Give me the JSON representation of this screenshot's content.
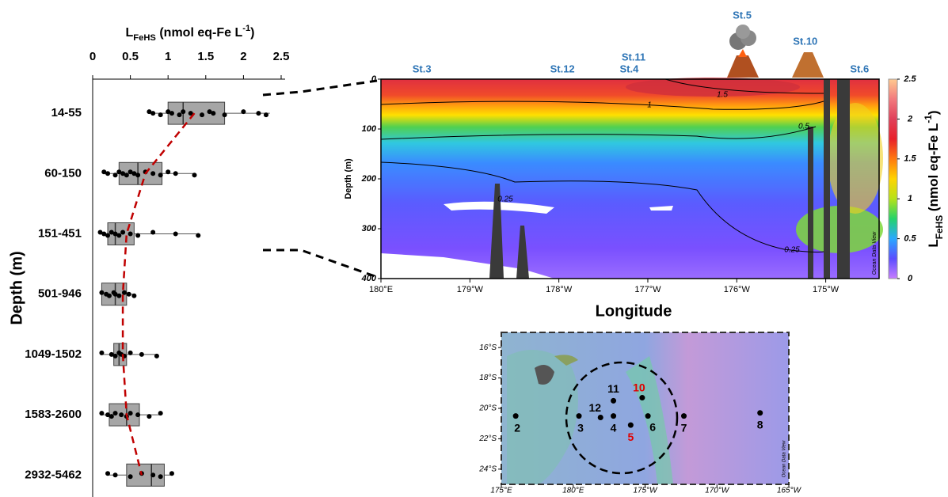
{
  "chart_data": [
    {
      "type": "boxplot",
      "x_label": [
        {
          "text": "L"
        },
        {
          "text": "FeHS",
          "style": "sub"
        },
        {
          "text": " (nmol eq-Fe L"
        },
        {
          "text": "-1",
          "style": "sup"
        },
        {
          "text": ")"
        }
      ],
      "y_label": "Depth (m)",
      "categories": [
        "14-55",
        "60-150",
        "151-451",
        "501-946",
        "1049-1502",
        "1583-2600",
        "2932-5462"
      ],
      "boxes": [
        {
          "min": 0.75,
          "q1": 1.0,
          "median": 1.2,
          "q3": 1.75,
          "max": 2.35
        },
        {
          "min": 0.15,
          "q1": 0.35,
          "median": 0.6,
          "q3": 0.92,
          "max": 1.35
        },
        {
          "min": 0.1,
          "q1": 0.2,
          "median": 0.3,
          "q3": 0.55,
          "max": 1.4
        },
        {
          "min": 0.12,
          "q1": 0.12,
          "median": 0.3,
          "q3": 0.45,
          "max": 0.55
        },
        {
          "min": 0.12,
          "q1": 0.28,
          "median": 0.35,
          "q3": 0.45,
          "max": 0.85
        },
        {
          "min": 0.12,
          "q1": 0.22,
          "median": 0.45,
          "q3": 0.62,
          "max": 0.9
        },
        {
          "min": 0.2,
          "q1": 0.45,
          "median": 0.78,
          "q3": 0.95,
          "max": 1.05
        }
      ],
      "points": [
        [
          0.75,
          0.8,
          0.9,
          1.0,
          1.05,
          1.15,
          1.2,
          1.3,
          1.45,
          1.55,
          1.6,
          1.75,
          2.0,
          2.2,
          2.3
        ],
        [
          0.15,
          0.2,
          0.3,
          0.35,
          0.4,
          0.45,
          0.5,
          0.55,
          0.6,
          0.7,
          0.8,
          0.9,
          1.0,
          1.1,
          1.35
        ],
        [
          0.1,
          0.15,
          0.2,
          0.25,
          0.3,
          0.35,
          0.4,
          0.5,
          0.6,
          0.8,
          1.1,
          1.4
        ],
        [
          0.12,
          0.18,
          0.22,
          0.28,
          0.3,
          0.35,
          0.42,
          0.48,
          0.55
        ],
        [
          0.12,
          0.25,
          0.3,
          0.35,
          0.38,
          0.42,
          0.5,
          0.65,
          0.85
        ],
        [
          0.12,
          0.2,
          0.25,
          0.3,
          0.38,
          0.45,
          0.5,
          0.6,
          0.75,
          0.9
        ],
        [
          0.2,
          0.3,
          0.5,
          0.65,
          0.8,
          0.9,
          1.05
        ]
      ],
      "means": [
        1.35,
        0.7,
        0.45,
        0.4,
        0.4,
        0.45,
        0.65
      ],
      "xlim": [
        0,
        2.5
      ],
      "xticks": [
        0,
        0.5,
        1,
        1.5,
        2,
        2.5
      ],
      "box_color": "#a6a6a6",
      "point_color": "#000000",
      "trend_color": "#c00000"
    },
    {
      "type": "section",
      "x_label": "Longitude",
      "y_label": "Depth (m)",
      "xlim": [
        180,
        185.6
      ],
      "ylim": [
        0,
        400
      ],
      "xticks": [
        {
          "value": 180,
          "label": "180°E"
        },
        {
          "value": 181,
          "label": "179°W"
        },
        {
          "value": 182,
          "label": "178°W"
        },
        {
          "value": 183,
          "label": "177°W"
        },
        {
          "value": 184,
          "label": "176°W"
        },
        {
          "value": 185,
          "label": "175°W"
        }
      ],
      "yticks": [
        0,
        100,
        200,
        300,
        400
      ],
      "stations": [
        {
          "name": "St.3",
          "x": 180.46
        },
        {
          "name": "St.12",
          "x": 182.04
        },
        {
          "name": "St.4",
          "x": 182.79
        },
        {
          "name": "St.11",
          "x": 182.84
        },
        {
          "name": "St.5",
          "x": 184.06
        },
        {
          "name": "St.10",
          "x": 184.77
        },
        {
          "name": "St.6",
          "x": 185.38
        }
      ],
      "station_color": "#2e75b6",
      "contour_labels": [
        "1.5",
        "1",
        "0.5",
        "0.25",
        "0.25"
      ],
      "watermark": "Ocean Data View",
      "colorbar_label": [
        {
          "text": "L"
        },
        {
          "text": "FeHS",
          "style": "sub"
        },
        {
          "text": " (nmol eq-Fe L"
        },
        {
          "text": "-1",
          "style": "sup"
        },
        {
          "text": ")"
        }
      ],
      "zlim": [
        0,
        2.5
      ],
      "zticks": [
        0,
        0.5,
        1,
        1.5,
        2,
        2.5
      ],
      "colorscale": [
        "#c77dff",
        "#5a4dff",
        "#2aa8ff",
        "#25d36b",
        "#b6e21a",
        "#ffd400",
        "#ff7a10",
        "#e8202a",
        "#e0405a",
        "#f27a7e",
        "#ffc98f"
      ]
    },
    {
      "type": "map",
      "xlim": [
        175,
        195
      ],
      "ylim": [
        -25,
        -15
      ],
      "xticks": [
        {
          "value": 175,
          "label": "175°E"
        },
        {
          "value": 180,
          "label": "180°E"
        },
        {
          "value": 185,
          "label": "175°W"
        },
        {
          "value": 190,
          "label": "170°W"
        },
        {
          "value": 195,
          "label": "165°W"
        }
      ],
      "yticks": [
        {
          "value": -16,
          "label": "16°S"
        },
        {
          "value": -18,
          "label": "18°S"
        },
        {
          "value": -20,
          "label": "20°S"
        },
        {
          "value": -22,
          "label": "22°S"
        },
        {
          "value": -24,
          "label": "24°S"
        }
      ],
      "stations": [
        {
          "label": "2",
          "x": 176.0,
          "y": -20.5,
          "color": "#000000"
        },
        {
          "label": "3",
          "x": 180.4,
          "y": -20.5,
          "color": "#000000"
        },
        {
          "label": "12",
          "x": 181.9,
          "y": -20.6,
          "color": "#000000"
        },
        {
          "label": "4",
          "x": 182.8,
          "y": -20.5,
          "color": "#000000"
        },
        {
          "label": "11",
          "x": 182.8,
          "y": -19.5,
          "color": "#000000"
        },
        {
          "label": "10",
          "x": 184.8,
          "y": -19.3,
          "color": "#e00000"
        },
        {
          "label": "5",
          "x": 184.0,
          "y": -21.1,
          "color": "#e00000"
        },
        {
          "label": "6",
          "x": 185.2,
          "y": -20.5,
          "color": "#000000"
        },
        {
          "label": "7",
          "x": 187.7,
          "y": -20.5,
          "color": "#000000"
        },
        {
          "label": "8",
          "x": 193.0,
          "y": -20.3,
          "color": "#000000"
        }
      ],
      "watermark": "Ocean Data View"
    }
  ]
}
